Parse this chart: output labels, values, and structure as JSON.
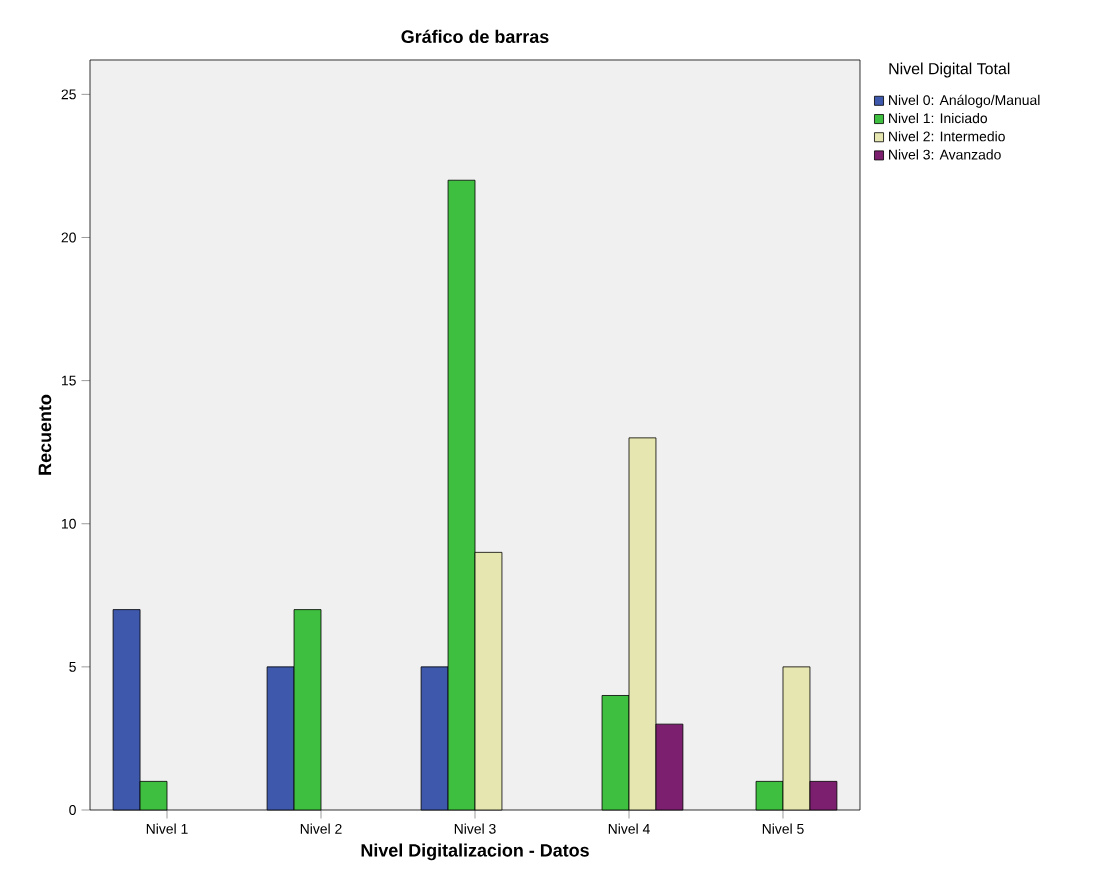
{
  "chart_data": {
    "type": "bar",
    "title": "Gráfico de barras",
    "xlabel": "Nivel Digitalizacion - Datos",
    "ylabel": "Recuento",
    "legend_title": "Nivel Digital Total",
    "legend": "right",
    "categories": [
      "Nivel 1",
      "Nivel 2",
      "Nivel 3",
      "Nivel 4",
      "Nivel 5"
    ],
    "series": [
      {
        "name": "Nivel 0: Análogo/Manual",
        "color": "#3e58ac",
        "values": [
          7,
          5,
          5,
          null,
          null
        ]
      },
      {
        "name": "Nivel 1: Iniciado",
        "color": "#3fbf3f",
        "values": [
          1,
          7,
          22,
          4,
          1
        ]
      },
      {
        "name": "Nivel 2: Intermedio",
        "color": "#e6e6b0",
        "values": [
          null,
          null,
          9,
          13,
          5
        ]
      },
      {
        "name": "Nivel 3: Avanzado",
        "color": "#7d1f6f",
        "values": [
          null,
          null,
          null,
          3,
          1
        ]
      }
    ],
    "ylim": [
      0,
      26.2
    ],
    "yticks": [
      0,
      5,
      10,
      15,
      20,
      25
    ]
  }
}
